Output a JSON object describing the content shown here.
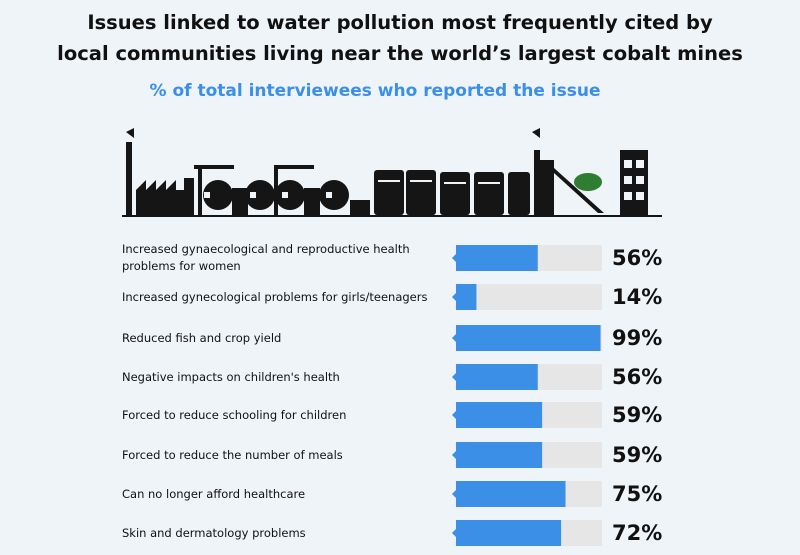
{
  "title_line1": "Issues linked to water pollution most frequently cited by",
  "title_line2": "local communities living near the world’s largest cobalt mines",
  "subtitle": "% of total interviewees who reported the issue",
  "colors": {
    "bar": "#3b8fe6",
    "track": "#e6e6e6",
    "subtitle": "#3b8fe6",
    "background": "#eff4f9"
  },
  "chart_data": {
    "type": "bar",
    "orientation": "horizontal",
    "title": "Issues linked to water pollution most frequently cited by local communities living near the world’s largest cobalt mines",
    "subtitle": "% of total interviewees who reported the issue",
    "categories": [
      "Increased gynaecological and reproductive health problems for women",
      "Increased gynecological problems for girls/teenagers",
      "Reduced fish and crop yield",
      "Negative impacts on children's health",
      "Forced to reduce schooling for children",
      "Forced to reduce the number of meals",
      "Can no longer afford healthcare",
      "Skin and dermatology problems"
    ],
    "values": [
      56,
      14,
      99,
      56,
      59,
      59,
      75,
      72
    ],
    "value_labels": [
      "56%",
      "14%",
      "99%",
      "56%",
      "59%",
      "59%",
      "75%",
      "72%"
    ],
    "xlim": [
      0,
      100
    ],
    "unit": "%",
    "grid": false,
    "legend": "none"
  }
}
